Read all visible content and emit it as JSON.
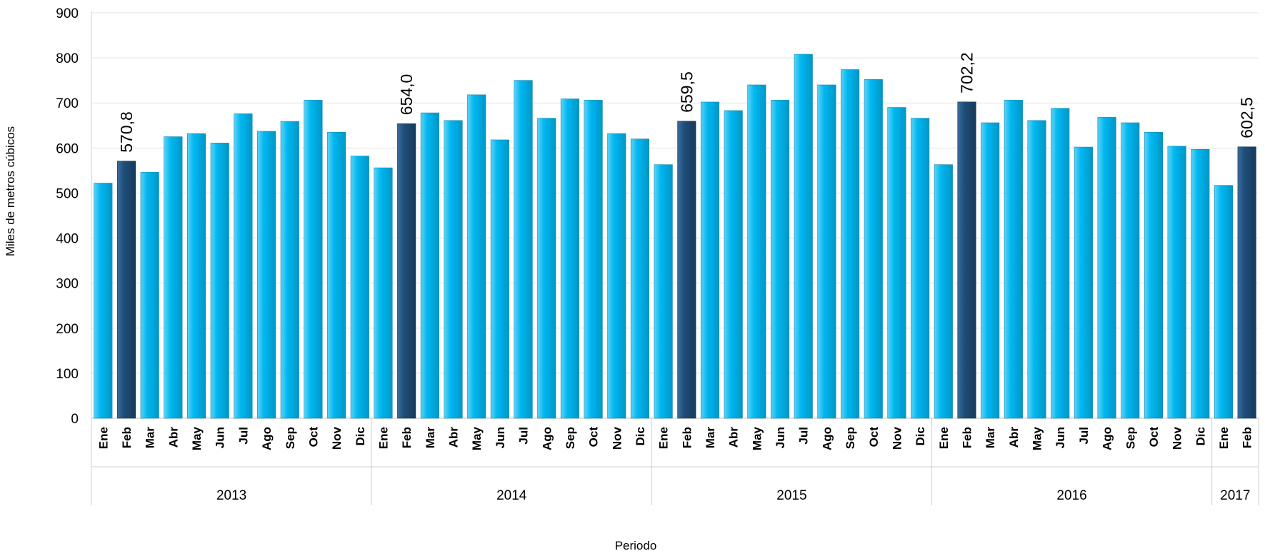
{
  "chart_data": {
    "type": "bar",
    "ylabel": "Miles de metros cúbicos",
    "xlabel": "Periodo",
    "ylim": [
      0,
      900
    ],
    "yticks": [
      0,
      100,
      200,
      300,
      400,
      500,
      600,
      700,
      800,
      900
    ],
    "grid": true,
    "colors": {
      "normal": "#00b8f1",
      "highlight": "#1f4e79"
    },
    "groups": [
      {
        "year": "2013",
        "months": [
          "Ene",
          "Feb",
          "Mar",
          "Abr",
          "May",
          "Jun",
          "Jul",
          "Ago",
          "Sep",
          "Oct",
          "Nov",
          "Dic"
        ],
        "values": [
          522,
          570.8,
          546,
          625,
          632,
          611,
          676,
          637,
          659,
          706,
          635,
          582
        ]
      },
      {
        "year": "2014",
        "months": [
          "Ene",
          "Feb",
          "Mar",
          "Abr",
          "May",
          "Jun",
          "Jul",
          "Ago",
          "Sep",
          "Oct",
          "Nov",
          "Dic"
        ],
        "values": [
          556,
          654.0,
          678,
          661,
          718,
          618,
          750,
          666,
          709,
          706,
          632,
          620
        ]
      },
      {
        "year": "2015",
        "months": [
          "Ene",
          "Feb",
          "Mar",
          "Abr",
          "May",
          "Jun",
          "Jul",
          "Ago",
          "Sep",
          "Oct",
          "Nov",
          "Dic"
        ],
        "values": [
          563,
          659.5,
          702,
          683,
          740,
          706,
          808,
          740,
          774,
          752,
          690,
          666
        ]
      },
      {
        "year": "2016",
        "months": [
          "Ene",
          "Feb",
          "Mar",
          "Abr",
          "May",
          "Jun",
          "Jul",
          "Ago",
          "Sep",
          "Oct",
          "Nov",
          "Dic"
        ],
        "values": [
          563,
          702.2,
          656,
          706,
          661,
          688,
          602,
          668,
          656,
          635,
          604,
          597
        ]
      },
      {
        "year": "2017",
        "months": [
          "Ene",
          "Feb"
        ],
        "values": [
          517,
          602.5
        ]
      }
    ],
    "highlight_month": "Feb",
    "data_labels": [
      "570,8",
      "654,0",
      "659,5",
      "702,2",
      "602,5"
    ]
  }
}
